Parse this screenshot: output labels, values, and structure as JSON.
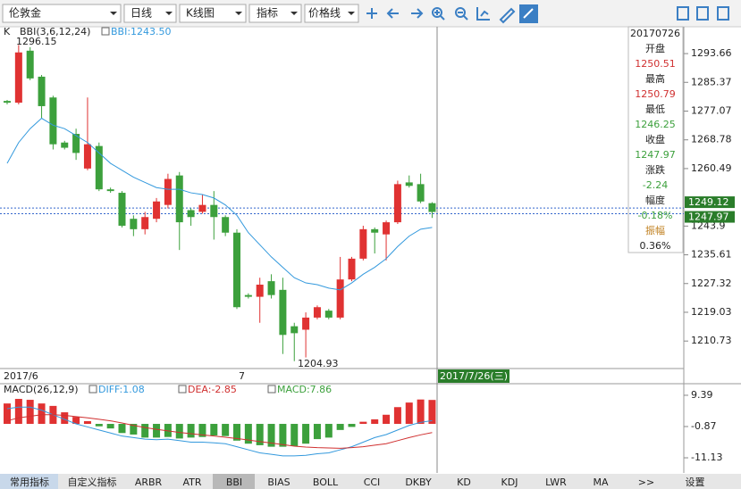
{
  "toolbar": {
    "symbol": "伦敦金",
    "period": "日线",
    "chart_type": "K线图",
    "indicator": "指标",
    "price_line": "价格线"
  },
  "main": {
    "indicator_name": "K",
    "bbi_name": "BBI(3,6,12,24)",
    "bbi_value": "BBI:1243.50",
    "max_label": "1296.15",
    "min_label": "1204.93",
    "ylim": [
      1202.8,
      1301.4
    ],
    "yticks": [
      1293.66,
      1285.37,
      1277.07,
      1268.78,
      1260.49,
      1243.9,
      1235.61,
      1227.32,
      1219.03,
      1210.73
    ],
    "price_tags": [
      1249.12,
      1247.97
    ],
    "candles": {
      "open": [
        1280,
        1279.5,
        1294.5,
        1287,
        1281,
        1268,
        1270.5,
        1260.5,
        1267,
        1254.5,
        1253.5,
        1246,
        1243,
        1246,
        1250,
        1258.5,
        1248.5,
        1248,
        1250,
        1246.5,
        1242,
        1224,
        1223.5,
        1228,
        1225.5,
        1215,
        1214,
        1217.5,
        1219.5,
        1217.5,
        1228.5,
        1234.5,
        1243,
        1241.5,
        1245,
        1256.5,
        1256,
        1250.51
      ],
      "high": [
        1280.3,
        1296.15,
        1295.5,
        1287.5,
        1281.5,
        1268.5,
        1272,
        1281,
        1268,
        1255,
        1254,
        1247,
        1248,
        1252,
        1259,
        1259.5,
        1249,
        1253,
        1254,
        1247,
        1243,
        1224.5,
        1229,
        1230,
        1229,
        1216,
        1219,
        1221,
        1220,
        1235,
        1235,
        1244,
        1243.5,
        1245.5,
        1257,
        1258.5,
        1259,
        1250.79
      ],
      "low": [
        1279,
        1279,
        1286,
        1275,
        1266,
        1266,
        1263,
        1260,
        1254,
        1253.5,
        1243.5,
        1241,
        1241.5,
        1245,
        1249,
        1237,
        1244,
        1247.5,
        1240,
        1241,
        1220,
        1223,
        1216,
        1223,
        1207,
        1204.93,
        1206,
        1217,
        1217,
        1217,
        1228,
        1234,
        1236,
        1234,
        1244.5,
        1255,
        1250.5,
        1246.25
      ],
      "close": [
        1279.5,
        1294,
        1286.5,
        1278.5,
        1267.5,
        1266.5,
        1265,
        1267.5,
        1254.5,
        1254,
        1244,
        1243,
        1246.5,
        1251,
        1257.5,
        1245,
        1246.5,
        1250,
        1246.5,
        1242,
        1220.5,
        1223.5,
        1227,
        1224,
        1212.5,
        1213,
        1217.5,
        1220.5,
        1217.5,
        1228.5,
        1234.5,
        1243,
        1242,
        1245,
        1256,
        1255.5,
        1251,
        1247.97
      ]
    },
    "bbi": [
      1262,
      1268,
      1272,
      1275,
      1273,
      1272,
      1270,
      1268,
      1265,
      1262,
      1260,
      1258,
      1256.5,
      1255,
      1254.5,
      1254.5,
      1253.5,
      1253,
      1252,
      1250,
      1247,
      1242,
      1238.5,
      1235,
      1232,
      1229,
      1227.5,
      1227,
      1226,
      1225.5,
      1227.5,
      1230,
      1232,
      1234.5,
      1238,
      1241,
      1243,
      1243.5
    ]
  },
  "x_axis": {
    "start": "2017/6",
    "month": "7",
    "cursor": "2017/7/26(三)"
  },
  "info": {
    "date": "20170726",
    "rows": [
      {
        "label": "开盘",
        "value": "1250.51"
      },
      {
        "label": "最高",
        "value": "1250.79"
      },
      {
        "label": "最低",
        "value": "1246.25"
      },
      {
        "label": "收盘",
        "value": "1247.97"
      },
      {
        "label": "涨跌",
        "value": "-2.24"
      },
      {
        "label": "幅度",
        "value": "-0.18%"
      },
      {
        "label": "振幅",
        "value": "0.36%"
      }
    ]
  },
  "macd": {
    "name": "MACD(26,12,9)",
    "diff_label": "DIFF:1.08",
    "dea_label": "DEA:-2.85",
    "macd_label": "MACD:7.86",
    "ylim": [
      -16.1,
      12.6
    ],
    "yticks": [
      9.39,
      -0.87,
      -11.13
    ],
    "macd": [
      6.7,
      8.2,
      7.9,
      6.7,
      5.9,
      3.8,
      2.3,
      0.9,
      -0.8,
      -1.5,
      -3,
      -3.5,
      -4.5,
      -4.5,
      -4.3,
      -4.8,
      -4.5,
      -4.3,
      -3.8,
      -4,
      -5.5,
      -6.5,
      -7,
      -7.5,
      -7.5,
      -7.3,
      -6.5,
      -5,
      -4.5,
      -2,
      -1,
      0.7,
      1.5,
      3,
      5.5,
      7,
      8,
      7.86
    ],
    "diff": [
      5,
      5.5,
      5.5,
      4.5,
      3,
      1.5,
      0,
      -1,
      -2,
      -3,
      -4,
      -4.5,
      -5,
      -5.2,
      -5,
      -5.5,
      -6,
      -6,
      -6.2,
      -6.5,
      -7.5,
      -8.5,
      -9.5,
      -10,
      -10.5,
      -10.5,
      -10.3,
      -9.8,
      -9.5,
      -8.5,
      -7.5,
      -6,
      -4.5,
      -3.5,
      -2,
      -0.5,
      0.5,
      1.08
    ],
    "dea": [
      1,
      2,
      2.5,
      3,
      3,
      2.8,
      2.4,
      2,
      1.5,
      1,
      0.3,
      -0.5,
      -1.2,
      -1.8,
      -2.3,
      -2.8,
      -3.2,
      -3.6,
      -4,
      -4.4,
      -4.8,
      -5.3,
      -5.8,
      -6.3,
      -6.8,
      -7.3,
      -7.6,
      -7.8,
      -7.9,
      -8,
      -7.8,
      -7.5,
      -7,
      -6.5,
      -5.5,
      -4.5,
      -3.6,
      -2.85
    ]
  },
  "tabs": [
    "常用指标",
    "自定义指标",
    "ARBR",
    "ATR",
    "BBI",
    "BIAS",
    "BOLL",
    "CCI",
    "DKBY",
    "KD",
    "KDJ",
    "LWR",
    "MA",
    ">>",
    "设置"
  ]
}
